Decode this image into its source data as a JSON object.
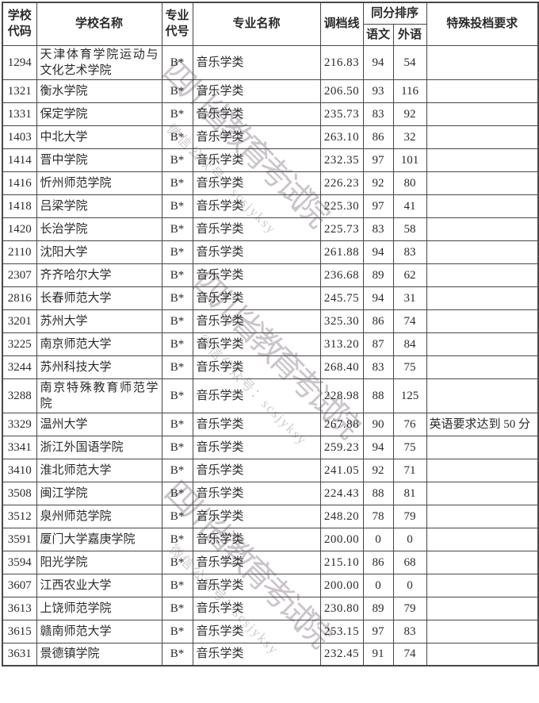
{
  "colors": {
    "background": "#ffffff",
    "text": "#2b2b2b",
    "border": "#474747",
    "watermark": "#c3bbc2"
  },
  "watermark": {
    "line1": "四川省教育考试院",
    "line2": "微信公众号：scsjyksy"
  },
  "table": {
    "headers": {
      "school_code": "学校代码",
      "school_name": "学校名称",
      "major_code": "专业代号",
      "major_name": "专业名称",
      "cutoff": "调档线",
      "tiebreak": "同分排序",
      "chinese": "语文",
      "foreign": "外语",
      "special": "特殊投档要求"
    },
    "rows": [
      {
        "code": "1294",
        "school": "天津体育学院运动与文化艺术学院",
        "major_code": "B*",
        "major": "音乐学类",
        "cutoff": "216.83",
        "chinese": "94",
        "foreign": "54",
        "special": ""
      },
      {
        "code": "1321",
        "school": "衡水学院",
        "major_code": "B*",
        "major": "音乐学类",
        "cutoff": "206.50",
        "chinese": "93",
        "foreign": "116",
        "special": ""
      },
      {
        "code": "1331",
        "school": "保定学院",
        "major_code": "B*",
        "major": "音乐学类",
        "cutoff": "235.73",
        "chinese": "83",
        "foreign": "92",
        "special": ""
      },
      {
        "code": "1403",
        "school": "中北大学",
        "major_code": "B*",
        "major": "音乐学类",
        "cutoff": "263.10",
        "chinese": "86",
        "foreign": "32",
        "special": ""
      },
      {
        "code": "1414",
        "school": "晋中学院",
        "major_code": "B*",
        "major": "音乐学类",
        "cutoff": "232.35",
        "chinese": "97",
        "foreign": "101",
        "special": ""
      },
      {
        "code": "1416",
        "school": "忻州师范学院",
        "major_code": "B*",
        "major": "音乐学类",
        "cutoff": "226.23",
        "chinese": "92",
        "foreign": "80",
        "special": ""
      },
      {
        "code": "1418",
        "school": "吕梁学院",
        "major_code": "B*",
        "major": "音乐学类",
        "cutoff": "225.30",
        "chinese": "97",
        "foreign": "41",
        "special": ""
      },
      {
        "code": "1420",
        "school": "长治学院",
        "major_code": "B*",
        "major": "音乐学类",
        "cutoff": "225.73",
        "chinese": "83",
        "foreign": "58",
        "special": ""
      },
      {
        "code": "2110",
        "school": "沈阳大学",
        "major_code": "B*",
        "major": "音乐学类",
        "cutoff": "261.88",
        "chinese": "94",
        "foreign": "83",
        "special": ""
      },
      {
        "code": "2307",
        "school": "齐齐哈尔大学",
        "major_code": "B*",
        "major": "音乐学类",
        "cutoff": "236.68",
        "chinese": "89",
        "foreign": "62",
        "special": ""
      },
      {
        "code": "2816",
        "school": "长春师范大学",
        "major_code": "B*",
        "major": "音乐学类",
        "cutoff": "245.75",
        "chinese": "94",
        "foreign": "31",
        "special": ""
      },
      {
        "code": "3201",
        "school": "苏州大学",
        "major_code": "B*",
        "major": "音乐学类",
        "cutoff": "325.30",
        "chinese": "86",
        "foreign": "74",
        "special": ""
      },
      {
        "code": "3225",
        "school": "南京师范大学",
        "major_code": "B*",
        "major": "音乐学类",
        "cutoff": "313.20",
        "chinese": "87",
        "foreign": "84",
        "special": ""
      },
      {
        "code": "3244",
        "school": "苏州科技大学",
        "major_code": "B*",
        "major": "音乐学类",
        "cutoff": "268.40",
        "chinese": "83",
        "foreign": "75",
        "special": ""
      },
      {
        "code": "3288",
        "school": "南京特殊教育师范学院",
        "major_code": "B*",
        "major": "音乐学类",
        "cutoff": "228.98",
        "chinese": "88",
        "foreign": "125",
        "special": ""
      },
      {
        "code": "3329",
        "school": "温州大学",
        "major_code": "B*",
        "major": "音乐学类",
        "cutoff": "267.88",
        "chinese": "90",
        "foreign": "76",
        "special": "英语要求达到 50 分"
      },
      {
        "code": "3341",
        "school": "浙江外国语学院",
        "major_code": "B*",
        "major": "音乐学类",
        "cutoff": "259.23",
        "chinese": "94",
        "foreign": "75",
        "special": ""
      },
      {
        "code": "3410",
        "school": "淮北师范大学",
        "major_code": "B*",
        "major": "音乐学类",
        "cutoff": "241.05",
        "chinese": "92",
        "foreign": "71",
        "special": ""
      },
      {
        "code": "3508",
        "school": "闽江学院",
        "major_code": "B*",
        "major": "音乐学类",
        "cutoff": "224.43",
        "chinese": "88",
        "foreign": "81",
        "special": ""
      },
      {
        "code": "3512",
        "school": "泉州师范学院",
        "major_code": "B*",
        "major": "音乐学类",
        "cutoff": "248.20",
        "chinese": "78",
        "foreign": "79",
        "special": ""
      },
      {
        "code": "3591",
        "school": "厦门大学嘉庚学院",
        "major_code": "B*",
        "major": "音乐学类",
        "cutoff": "200.00",
        "chinese": "0",
        "foreign": "0",
        "special": ""
      },
      {
        "code": "3594",
        "school": "阳光学院",
        "major_code": "B*",
        "major": "音乐学类",
        "cutoff": "215.10",
        "chinese": "86",
        "foreign": "68",
        "special": ""
      },
      {
        "code": "3607",
        "school": "江西农业大学",
        "major_code": "B*",
        "major": "音乐学类",
        "cutoff": "200.00",
        "chinese": "0",
        "foreign": "0",
        "special": ""
      },
      {
        "code": "3613",
        "school": "上饶师范学院",
        "major_code": "B*",
        "major": "音乐学类",
        "cutoff": "230.80",
        "chinese": "89",
        "foreign": "79",
        "special": ""
      },
      {
        "code": "3615",
        "school": "赣南师范大学",
        "major_code": "B*",
        "major": "音乐学类",
        "cutoff": "253.15",
        "chinese": "97",
        "foreign": "83",
        "special": ""
      },
      {
        "code": "3631",
        "school": "景德镇学院",
        "major_code": "B*",
        "major": "音乐学类",
        "cutoff": "232.45",
        "chinese": "91",
        "foreign": "74",
        "special": ""
      }
    ]
  }
}
